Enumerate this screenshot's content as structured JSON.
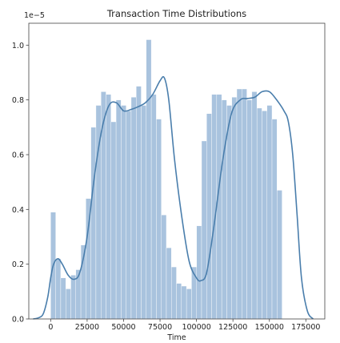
{
  "chart_data": {
    "type": "bar",
    "title": "Transaction Time Distributions",
    "xlabel": "Time",
    "ylabel": "",
    "y_scale_label": "1e−5",
    "xlim": [
      -15000,
      188000
    ],
    "ylim": [
      0,
      1.08
    ],
    "x_ticks": [
      0,
      25000,
      50000,
      75000,
      100000,
      125000,
      150000,
      175000
    ],
    "y_ticks": [
      0.0,
      0.2,
      0.4,
      0.6,
      0.8,
      1.0
    ],
    "y_tick_labels": [
      "0.0",
      "0.2",
      "0.4",
      "0.6",
      "0.8",
      "1.0"
    ],
    "bin_width": 3450,
    "bin_start": 0,
    "histogram_values": [
      0.39,
      0.22,
      0.15,
      0.11,
      0.16,
      0.18,
      0.27,
      0.44,
      0.7,
      0.78,
      0.83,
      0.82,
      0.72,
      0.8,
      0.78,
      0.76,
      0.81,
      0.85,
      0.78,
      1.02,
      0.82,
      0.73,
      0.38,
      0.26,
      0.19,
      0.13,
      0.12,
      0.11,
      0.19,
      0.34,
      0.65,
      0.75,
      0.82,
      0.82,
      0.8,
      0.78,
      0.81,
      0.84,
      0.84,
      0.8,
      0.83,
      0.77,
      0.76,
      0.78,
      0.73,
      0.47
    ],
    "kde_points": [
      [
        -12000,
        0.0
      ],
      [
        -8000,
        0.005
      ],
      [
        -5000,
        0.02
      ],
      [
        -2000,
        0.08
      ],
      [
        0,
        0.15
      ],
      [
        2000,
        0.2
      ],
      [
        5000,
        0.22
      ],
      [
        8000,
        0.2
      ],
      [
        12000,
        0.16
      ],
      [
        16000,
        0.145
      ],
      [
        20000,
        0.17
      ],
      [
        25000,
        0.3
      ],
      [
        30000,
        0.52
      ],
      [
        35000,
        0.69
      ],
      [
        40000,
        0.78
      ],
      [
        45000,
        0.79
      ],
      [
        50000,
        0.76
      ],
      [
        55000,
        0.765
      ],
      [
        60000,
        0.775
      ],
      [
        65000,
        0.79
      ],
      [
        70000,
        0.82
      ],
      [
        75000,
        0.87
      ],
      [
        78000,
        0.88
      ],
      [
        81000,
        0.8
      ],
      [
        85000,
        0.58
      ],
      [
        90000,
        0.37
      ],
      [
        95000,
        0.21
      ],
      [
        100000,
        0.15
      ],
      [
        103000,
        0.14
      ],
      [
        107000,
        0.17
      ],
      [
        112000,
        0.34
      ],
      [
        118000,
        0.58
      ],
      [
        124000,
        0.75
      ],
      [
        130000,
        0.8
      ],
      [
        135000,
        0.805
      ],
      [
        140000,
        0.81
      ],
      [
        145000,
        0.83
      ],
      [
        150000,
        0.83
      ],
      [
        155000,
        0.8
      ],
      [
        160000,
        0.76
      ],
      [
        163000,
        0.72
      ],
      [
        166000,
        0.6
      ],
      [
        169000,
        0.38
      ],
      [
        172000,
        0.15
      ],
      [
        176000,
        0.03
      ],
      [
        180000,
        0.0
      ]
    ],
    "bar_color": "#a9c3de",
    "line_color": "#4a7eac",
    "grid": false,
    "legend": "none"
  }
}
